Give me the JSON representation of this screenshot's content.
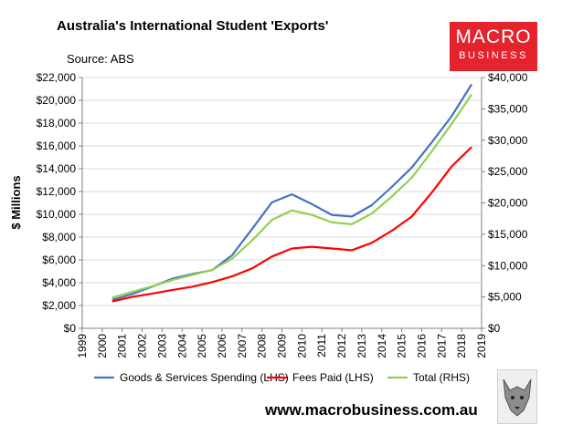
{
  "header": {
    "title": "Australia's International Student 'Exports'",
    "source": "Source: ABS",
    "logo_line1": "MACRO",
    "logo_line2": "BUSINESS",
    "logo_color": "#e4232d"
  },
  "footer": {
    "website": "www.macrobusiness.com.au"
  },
  "chart_data": {
    "type": "line",
    "x_ticks": [
      "1999",
      "2000",
      "2001",
      "2002",
      "2003",
      "2004",
      "2005",
      "2006",
      "2007",
      "2008",
      "2009",
      "2010",
      "2011",
      "2012",
      "2013",
      "2014",
      "2015",
      "2016",
      "2017",
      "2018",
      "2019"
    ],
    "ylabel_left": "$ Millions",
    "ylim_left": [
      0,
      22000
    ],
    "yticks_left": [
      "$0",
      "$2,000",
      "$4,000",
      "$6,000",
      "$8,000",
      "$10,000",
      "$12,000",
      "$14,000",
      "$16,000",
      "$18,000",
      "$20,000",
      "$22,000"
    ],
    "ylim_right": [
      0,
      40000
    ],
    "yticks_right": [
      "$0",
      "$5,000",
      "$10,000",
      "$15,000",
      "$20,000",
      "$25,000",
      "$30,000",
      "$35,000",
      "$40,000"
    ],
    "grid": "horizontal",
    "legend_position": "bottom",
    "series": [
      {
        "name": "Goods & Services Spending (LHS)",
        "axis": "left",
        "color": "#4472c4",
        "x": [
          2000.5,
          2001.5,
          2002.5,
          2003.5,
          2004.5,
          2005.5,
          2006.5,
          2007.5,
          2008.5,
          2009.5,
          2010.5,
          2011.5,
          2012.5,
          2013.5,
          2014.5,
          2015.5,
          2016.5,
          2017.5,
          2018.5
        ],
        "y": [
          2500,
          3000,
          3650,
          4350,
          4750,
          5100,
          6400,
          8700,
          11050,
          11750,
          10900,
          9950,
          9800,
          10800,
          12400,
          14100,
          16300,
          18600,
          21400
        ]
      },
      {
        "name": "Fees Paid (LHS)",
        "axis": "left",
        "color": "#ff0000",
        "x": [
          2000.5,
          2001.5,
          2002.5,
          2003.5,
          2004.5,
          2005.5,
          2006.5,
          2007.5,
          2008.5,
          2009.5,
          2010.5,
          2011.5,
          2012.5,
          2013.5,
          2014.5,
          2015.5,
          2016.5,
          2017.5,
          2018.5
        ],
        "y": [
          2350,
          2750,
          3050,
          3350,
          3650,
          4050,
          4550,
          5250,
          6300,
          7000,
          7150,
          7000,
          6850,
          7500,
          8550,
          9800,
          11900,
          14200,
          15900
        ]
      },
      {
        "name": "Total (RHS)",
        "axis": "right",
        "color": "#92d050",
        "x": [
          2000.5,
          2001.5,
          2002.5,
          2003.5,
          2004.5,
          2005.5,
          2006.5,
          2007.5,
          2008.5,
          2009.5,
          2010.5,
          2011.5,
          2012.5,
          2013.5,
          2014.5,
          2015.5,
          2016.5,
          2017.5,
          2018.5
        ],
        "y": [
          4900,
          5800,
          6700,
          7700,
          8500,
          9300,
          11100,
          14000,
          17300,
          18800,
          18100,
          16900,
          16600,
          18300,
          21000,
          24000,
          28200,
          32600,
          37300
        ]
      }
    ]
  }
}
